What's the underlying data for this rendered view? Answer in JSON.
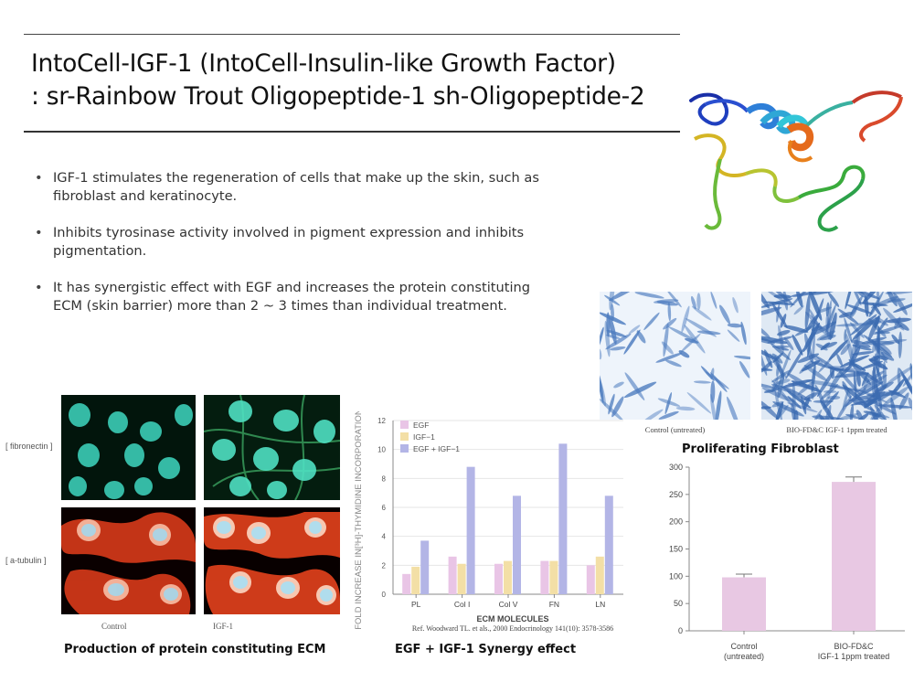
{
  "title": {
    "line1": "IntoCell-IGF-1 (IntoCell-Insulin-like Growth Factor)",
    "line2": ": sr-Rainbow Trout Oligopeptide-1 sh-Oligopeptide-2"
  },
  "bullets": [
    "IGF-1 stimulates the regeneration of cells that make up the skin, such as fibroblast and keratinocyte.",
    "Inhibits tyrosinase activity involved in pigment expression and inhibits pigmentation.",
    "It has synergistic effect with EGF and increases the protein constituting ECM (skin barrier) more than 2 ~ 3 times than individual treatment."
  ],
  "ecm_panel": {
    "row_labels": [
      "[ fibronectin ]",
      "[ a-tubulin ]"
    ],
    "col_labels": [
      "Control",
      "IGF-1"
    ],
    "caption": "Production of protein constituting ECM"
  },
  "synergy_panel": {
    "caption": "EGF + IGF-1 Synergy effect",
    "reference": "Ref. Woodward TL. et als., 2000 Endocrinology 141(10): 3578-3586"
  },
  "fibroblast_panel": {
    "photo_labels": [
      "Control (untreated)",
      "BIO-FD&C IGF-1 1ppm treated"
    ],
    "caption": "Proliferating  Fibroblast"
  },
  "colors": {
    "egf": "#e9c5e6",
    "igf1": "#f3dfa6",
    "egf_igf1": "#b3b5e6",
    "bar_pink": "#e8c8e3"
  },
  "chart_data": [
    {
      "type": "bar",
      "title": "",
      "xlabel": "ECM MOLECULES",
      "ylabel": "FOLD INCREASE IN[³H]-THYMIDINE INCORPORATION",
      "categories": [
        "PL",
        "Col  I",
        "Col V",
        "FN",
        "LN"
      ],
      "ylim": [
        0,
        12
      ],
      "yticks": [
        "0",
        "2",
        "4",
        "6",
        "8",
        "10",
        "12"
      ],
      "legend_position": "top-left",
      "series": [
        {
          "name": "EGF",
          "values": [
            1.4,
            2.6,
            2.1,
            2.3,
            2.0
          ]
        },
        {
          "name": "IGF−1",
          "values": [
            1.9,
            2.1,
            2.3,
            2.3,
            2.6
          ]
        },
        {
          "name": "EGF + IGF−1",
          "values": [
            3.7,
            8.8,
            6.8,
            10.4,
            6.8
          ]
        }
      ]
    },
    {
      "type": "bar",
      "title": "",
      "categories": [
        [
          "Control",
          "(untreated)"
        ],
        [
          "BIO-FD&C",
          "IGF-1 1ppm treated"
        ]
      ],
      "values": [
        98,
        273
      ],
      "error": [
        6,
        9
      ],
      "ylim": [
        0,
        300
      ],
      "yticks": [
        "0",
        "50",
        "100",
        "150",
        "200",
        "250",
        "300"
      ]
    }
  ]
}
